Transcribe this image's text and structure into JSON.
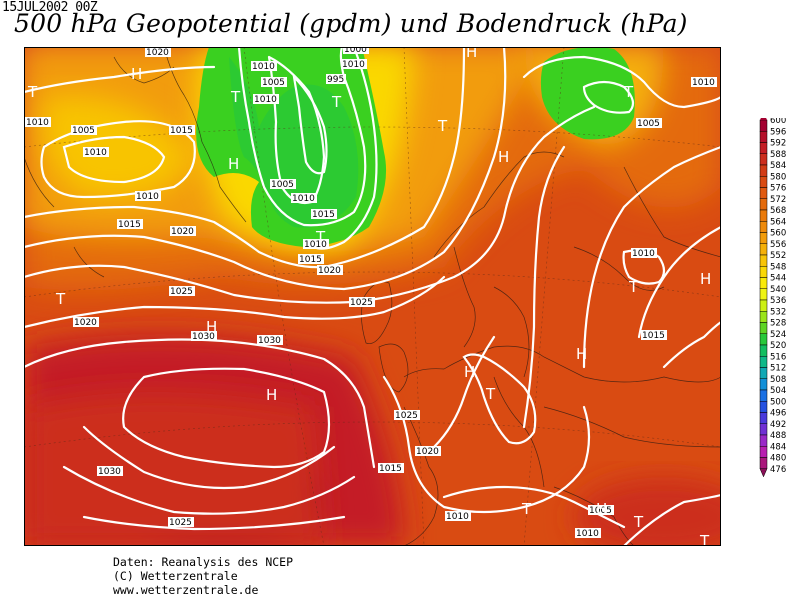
{
  "header": {
    "date": "15JUL2002 00Z",
    "title": "500 hPa Geopotential (gpdm) und Bodendruck (hPa)"
  },
  "map": {
    "pressure_labels": [
      "1020",
      "1010",
      "1005",
      "1000",
      "1010",
      "1010",
      "995",
      "1010",
      "1005",
      "1010",
      "1015",
      "1010",
      "1015",
      "1020",
      "1005",
      "1010",
      "1015",
      "1010",
      "1015",
      "1020",
      "1010",
      "1005",
      "1020",
      "1025",
      "1025",
      "1010",
      "1015",
      "1030",
      "1030",
      "1025",
      "1020",
      "1015",
      "1030",
      "1025",
      "1010",
      "1010",
      "1005"
    ],
    "pressure_systems": [
      "H",
      "T",
      "H",
      "T",
      "T",
      "T",
      "H",
      "T",
      "H",
      "H",
      "T",
      "T",
      "H",
      "H",
      "H",
      "T",
      "H",
      "T",
      "T",
      "H",
      "T",
      "T"
    ]
  },
  "legend": {
    "levels": [
      "600",
      "596",
      "592",
      "588",
      "584",
      "580",
      "576",
      "572",
      "568",
      "564",
      "560",
      "556",
      "552",
      "548",
      "544",
      "540",
      "536",
      "532",
      "528",
      "524",
      "520",
      "516",
      "512",
      "508",
      "504",
      "500",
      "496",
      "492",
      "488",
      "484",
      "480",
      "476"
    ],
    "colors": [
      "#a30030",
      "#b5102a",
      "#c41e25",
      "#cc2e1e",
      "#d23c16",
      "#d94b12",
      "#e0590f",
      "#e46a0c",
      "#ea7a0a",
      "#ee8a0a",
      "#f29c0a",
      "#f5b008",
      "#f8c406",
      "#fad806",
      "#faea08",
      "#f0f414",
      "#cdf015",
      "#9ae41a",
      "#5ed424",
      "#27c83a",
      "#12be60",
      "#0fb888",
      "#10a8b4",
      "#1290d8",
      "#1a70e4",
      "#2450e0",
      "#4a3adc",
      "#7030d4",
      "#9a28c8",
      "#b81eb0",
      "#aa167c",
      "#8a1058"
    ]
  },
  "footer": {
    "line1": "Daten: Reanalysis des NCEP",
    "line2": "(C) Wetterzentrale",
    "line3": "www.wetterzentrale.de"
  }
}
